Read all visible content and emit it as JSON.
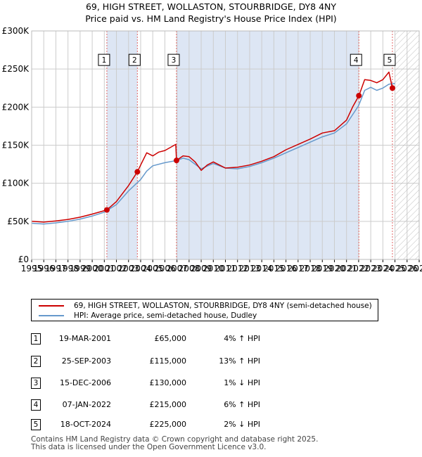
{
  "title": {
    "line1": "69, HIGH STREET, WOLLASTON, STOURBRIDGE, DY8 4NY",
    "line2": "Price paid vs. HM Land Registry's House Price Index (HPI)"
  },
  "colors": {
    "property": "#cc0000",
    "hpi": "#6699cc",
    "shade": "#dde6f4",
    "marker_line": "#e06666",
    "grid": "#cccccc"
  },
  "chart_data": {
    "type": "line",
    "xlim": [
      1995,
      2027
    ],
    "ylim": [
      0,
      300000
    ],
    "x_ticks": [
      "1995",
      "1996",
      "1997",
      "1998",
      "1999",
      "2000",
      "2001",
      "2002",
      "2003",
      "2004",
      "2005",
      "2006",
      "2007",
      "2008",
      "2009",
      "2010",
      "2011",
      "2012",
      "2013",
      "2014",
      "2015",
      "2016",
      "2017",
      "2018",
      "2019",
      "2020",
      "2021",
      "2022",
      "2023",
      "2024",
      "2025",
      "2026",
      "2027"
    ],
    "y_ticks": [
      {
        "value": 0,
        "label": "£0"
      },
      {
        "value": 50000,
        "label": "£50K"
      },
      {
        "value": 100000,
        "label": "£100K"
      },
      {
        "value": 150000,
        "label": "£150K"
      },
      {
        "value": 200000,
        "label": "£200K"
      },
      {
        "value": 250000,
        "label": "£250K"
      },
      {
        "value": 300000,
        "label": "£300K"
      }
    ],
    "shaded_ranges": [
      [
        2001.21,
        2003.73
      ],
      [
        2006.96,
        2022.02
      ]
    ],
    "hatched_from": 2025.0,
    "series": [
      {
        "name": "69, HIGH STREET, WOLLASTON, STOURBRIDGE, DY8 4NY (semi-detached house)",
        "color": "#cc0000",
        "points": [
          [
            1995,
            50000
          ],
          [
            1996,
            49000
          ],
          [
            1997,
            50500
          ],
          [
            1998,
            52500
          ],
          [
            1999,
            55500
          ],
          [
            2000,
            59500
          ],
          [
            2001.21,
            65000
          ],
          [
            2002,
            76000
          ],
          [
            2003,
            97000
          ],
          [
            2003.73,
            115000
          ],
          [
            2004,
            124000
          ],
          [
            2004.5,
            140000
          ],
          [
            2005,
            136000
          ],
          [
            2005.5,
            141000
          ],
          [
            2006,
            143000
          ],
          [
            2006.9,
            151000
          ],
          [
            2006.96,
            130000
          ],
          [
            2007.5,
            136000
          ],
          [
            2008,
            135000
          ],
          [
            2008.5,
            128000
          ],
          [
            2009,
            117000
          ],
          [
            2009.5,
            124000
          ],
          [
            2010,
            128000
          ],
          [
            2010.5,
            124000
          ],
          [
            2011,
            120000
          ],
          [
            2012,
            121000
          ],
          [
            2013,
            124000
          ],
          [
            2014,
            129000
          ],
          [
            2015,
            135000
          ],
          [
            2016,
            144000
          ],
          [
            2017,
            151000
          ],
          [
            2018,
            158000
          ],
          [
            2019,
            166000
          ],
          [
            2020,
            169000
          ],
          [
            2021,
            183000
          ],
          [
            2021.5,
            200000
          ],
          [
            2022.02,
            215000
          ],
          [
            2022.5,
            236000
          ],
          [
            2023,
            235000
          ],
          [
            2023.5,
            232000
          ],
          [
            2024,
            236000
          ],
          [
            2024.5,
            246000
          ],
          [
            2024.79,
            225000
          ]
        ]
      },
      {
        "name": "HPI: Average price, semi-detached house, Dudley",
        "color": "#6699cc",
        "points": [
          [
            1995,
            47500
          ],
          [
            1996,
            46500
          ],
          [
            1997,
            48000
          ],
          [
            1998,
            50000
          ],
          [
            1999,
            53000
          ],
          [
            2000,
            57000
          ],
          [
            2001,
            62000
          ],
          [
            2002,
            72000
          ],
          [
            2003,
            90000
          ],
          [
            2004,
            105000
          ],
          [
            2004.5,
            116000
          ],
          [
            2005,
            123000
          ],
          [
            2006,
            127000
          ],
          [
            2007,
            130000
          ],
          [
            2007.5,
            133000
          ],
          [
            2008,
            131000
          ],
          [
            2009,
            119000
          ],
          [
            2010,
            126000
          ],
          [
            2011,
            120000
          ],
          [
            2012,
            119000
          ],
          [
            2013,
            122000
          ],
          [
            2014,
            127000
          ],
          [
            2015,
            133000
          ],
          [
            2016,
            140000
          ],
          [
            2017,
            147000
          ],
          [
            2018,
            154000
          ],
          [
            2019,
            161000
          ],
          [
            2020,
            166000
          ],
          [
            2021,
            178000
          ],
          [
            2022,
            202000
          ],
          [
            2022.5,
            222000
          ],
          [
            2023,
            226000
          ],
          [
            2023.5,
            222000
          ],
          [
            2024,
            225000
          ],
          [
            2024.5,
            230000
          ],
          [
            2025,
            231000
          ]
        ]
      }
    ],
    "transactions": [
      {
        "n": "1",
        "x": 2001.21,
        "y": 65000
      },
      {
        "n": "2",
        "x": 2003.73,
        "y": 115000
      },
      {
        "n": "3",
        "x": 2006.96,
        "y": 130000
      },
      {
        "n": "4",
        "x": 2022.02,
        "y": 215000
      },
      {
        "n": "5",
        "x": 2024.79,
        "y": 225000
      }
    ],
    "box_value": 262000
  },
  "legend": {
    "property": "69, HIGH STREET, WOLLASTON, STOURBRIDGE, DY8 4NY (semi-detached house)",
    "hpi": "HPI: Average price, semi-detached house, Dudley"
  },
  "table": [
    {
      "n": "1",
      "date": "19-MAR-2001",
      "price": "£65,000",
      "hpi": "4% ↑ HPI"
    },
    {
      "n": "2",
      "date": "25-SEP-2003",
      "price": "£115,000",
      "hpi": "13% ↑ HPI"
    },
    {
      "n": "3",
      "date": "15-DEC-2006",
      "price": "£130,000",
      "hpi": "1% ↓ HPI"
    },
    {
      "n": "4",
      "date": "07-JAN-2022",
      "price": "£215,000",
      "hpi": "6% ↑ HPI"
    },
    {
      "n": "5",
      "date": "18-OCT-2024",
      "price": "£225,000",
      "hpi": "2% ↓ HPI"
    }
  ],
  "footer": {
    "line1": "Contains HM Land Registry data © Crown copyright and database right 2025.",
    "line2": "This data is licensed under the Open Government Licence v3.0."
  }
}
